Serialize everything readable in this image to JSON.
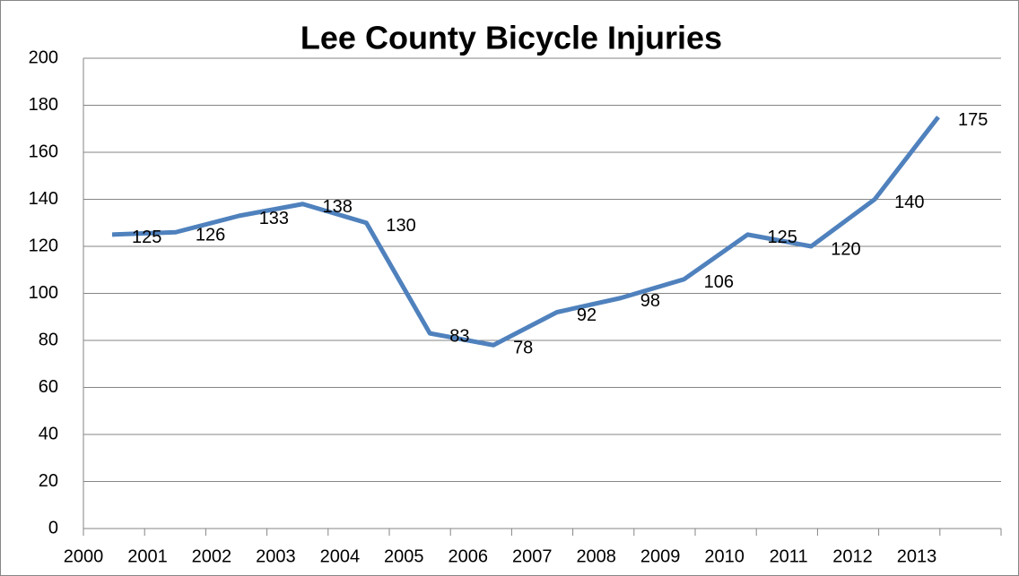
{
  "chart_data": {
    "type": "line",
    "title": "Lee County Bicycle Injuries",
    "categories": [
      "2000",
      "2001",
      "2002",
      "2003",
      "2004",
      "2005",
      "2006",
      "2007",
      "2008",
      "2009",
      "2010",
      "2011",
      "2012",
      "2013"
    ],
    "series": [
      {
        "name": "Bicycle Injuries",
        "color": "#4f81bd",
        "values": [
          125,
          126,
          133,
          138,
          130,
          83,
          78,
          92,
          98,
          106,
          125,
          120,
          140,
          175
        ]
      }
    ],
    "ylim": [
      0,
      200
    ],
    "yticks": [
      0,
      20,
      40,
      60,
      80,
      100,
      120,
      140,
      160,
      180,
      200
    ],
    "grid": true
  }
}
